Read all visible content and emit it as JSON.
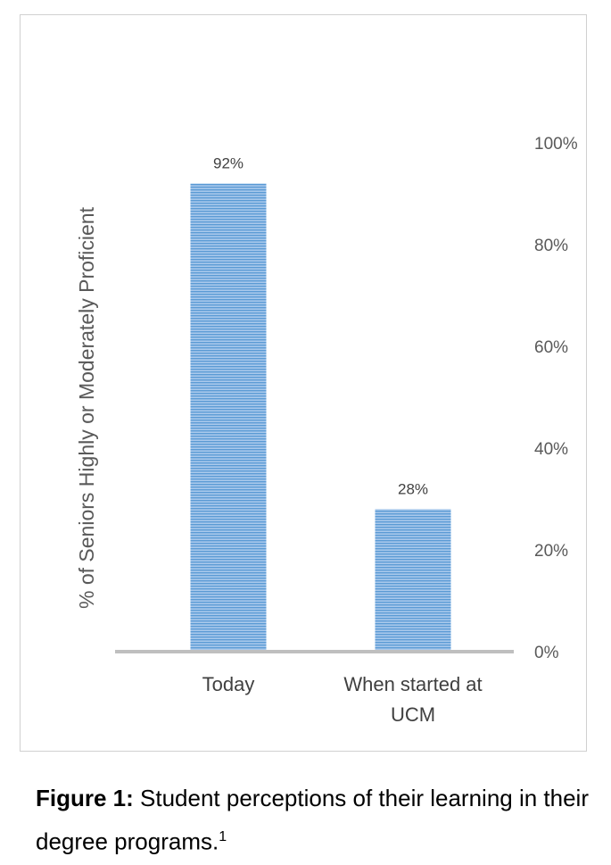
{
  "chart_data": {
    "type": "bar",
    "categories": [
      [
        "Today"
      ],
      [
        "When started at",
        "UCM"
      ]
    ],
    "values": [
      92,
      28
    ],
    "data_labels": [
      "92%",
      "28%"
    ],
    "ylabel": "% of Seniors Highly or Moderately Proficient",
    "ylim": [
      0,
      100
    ],
    "yticks": [
      "0%",
      "20%",
      "40%",
      "60%",
      "80%",
      "100%"
    ],
    "y_axis_position": "right",
    "bar_color": "#5b9bd5",
    "bar_fill": "horizontal-stripes",
    "grid": false,
    "legend": "none"
  },
  "caption": {
    "label": "Figure 1:",
    "text": " Student perceptions of their learning in their degree programs.",
    "footnote": "1"
  }
}
